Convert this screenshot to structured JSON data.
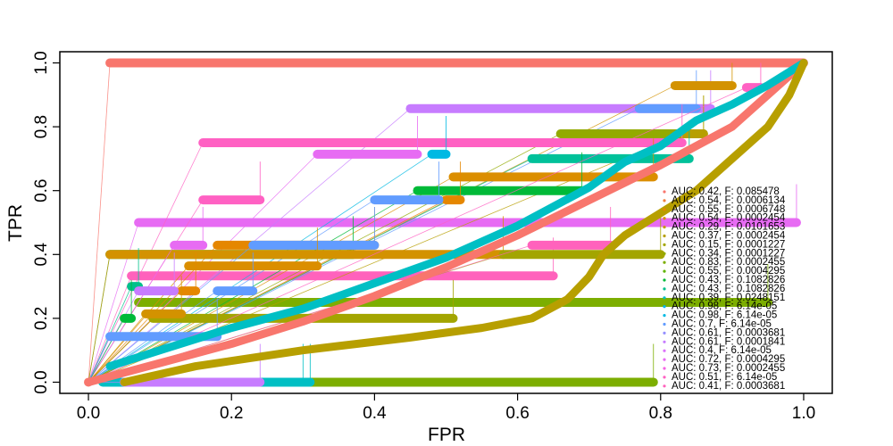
{
  "chart_data": {
    "type": "line",
    "title": "",
    "xlabel": "FPR",
    "ylabel": "TPR",
    "xlim": [
      -0.04,
      1.04
    ],
    "ylim": [
      -0.035,
      1.035
    ],
    "x_ticks": [
      0.0,
      0.2,
      0.4,
      0.6,
      0.8,
      1.0
    ],
    "y_ticks": [
      0.0,
      0.2,
      0.4,
      0.6,
      0.8,
      1.0
    ],
    "x_tick_labels": [
      "0.0",
      "0.2",
      "0.4",
      "0.6",
      "0.8",
      "1.0"
    ],
    "y_tick_labels": [
      "0.0",
      "0.2",
      "0.4",
      "0.6",
      "0.8",
      "1.0"
    ],
    "grid": false,
    "legend_position": "bottom-right",
    "series": [
      {
        "color": "#F8766D",
        "segments": [
          {
            "tpr": 1.0,
            "fpr_start": 0.03,
            "fpr_end": 1.0
          }
        ]
      },
      {
        "color": "#E76BF3",
        "segments": [
          {
            "tpr": 0.5,
            "fpr_start": 0.07,
            "fpr_end": 0.99
          }
        ]
      },
      {
        "color": "#FF62BC",
        "segments": [
          {
            "tpr": 0.333,
            "fpr_start": 0.06,
            "fpr_end": 0.65
          }
        ]
      },
      {
        "color": "#7CAE00",
        "segments": [
          {
            "tpr": 0.25,
            "fpr_start": 0.07,
            "fpr_end": 0.95
          },
          {
            "tpr": 0.0,
            "fpr_start": 0.3,
            "fpr_end": 0.79
          }
        ]
      },
      {
        "color": "#00BFC4",
        "segments": [
          {
            "tpr": 0.0,
            "fpr_start": 0.02,
            "fpr_end": 0.3
          },
          {
            "tpr": 0.0,
            "fpr_start": 0.24,
            "fpr_end": 0.31
          }
        ]
      },
      {
        "color": "#C77CFF",
        "segments": [
          {
            "tpr": 0.857,
            "fpr_start": 0.45,
            "fpr_end": 0.87
          },
          {
            "tpr": 0.0,
            "fpr_start": 0.05,
            "fpr_end": 0.24
          }
        ]
      },
      {
        "color": "#619CFF",
        "segments": [
          {
            "tpr": 0.857,
            "fpr_start": 0.77,
            "fpr_end": 0.85
          }
        ]
      },
      {
        "color": "#D39200",
        "segments": [
          {
            "tpr": 0.929,
            "fpr_start": 0.82,
            "fpr_end": 0.9
          }
        ]
      },
      {
        "color": "#93AA00",
        "segments": [
          {
            "tpr": 0.778,
            "fpr_start": 0.66,
            "fpr_end": 0.86
          }
        ]
      },
      {
        "color": "#B79F00",
        "segments": [
          {
            "tpr": 0.778,
            "fpr_start": 0.83,
            "fpr_end": 0.86
          }
        ]
      },
      {
        "color": "#FF61C3",
        "segments": [
          {
            "tpr": 0.75,
            "fpr_start": 0.16,
            "fpr_end": 0.83
          }
        ]
      },
      {
        "color": "#00C19A",
        "segments": [
          {
            "tpr": 0.7,
            "fpr_start": 0.62,
            "fpr_end": 0.84
          }
        ]
      },
      {
        "color": "#E76BF3",
        "segments": [
          {
            "tpr": 0.714,
            "fpr_start": 0.32,
            "fpr_end": 0.46
          }
        ]
      },
      {
        "color": "#00B9E3",
        "segments": [
          {
            "tpr": 0.714,
            "fpr_start": 0.48,
            "fpr_end": 0.5
          }
        ]
      },
      {
        "color": "#DB8E00",
        "segments": [
          {
            "tpr": 0.643,
            "fpr_start": 0.51,
            "fpr_end": 0.79
          }
        ]
      },
      {
        "color": "#00BA38",
        "segments": [
          {
            "tpr": 0.6,
            "fpr_start": 0.46,
            "fpr_end": 0.69
          }
        ]
      },
      {
        "color": "#E58700",
        "segments": [
          {
            "tpr": 0.571,
            "fpr_start": 0.5,
            "fpr_end": 0.52
          }
        ]
      },
      {
        "color": "#619CFF",
        "segments": [
          {
            "tpr": 0.571,
            "fpr_start": 0.4,
            "fpr_end": 0.49
          }
        ]
      },
      {
        "color": "#FF61C3",
        "segments": [
          {
            "tpr": 0.571,
            "fpr_start": 0.16,
            "fpr_end": 0.24
          }
        ]
      },
      {
        "color": "#00BA38",
        "segments": [
          {
            "tpr": 0.4,
            "fpr_start": 0.03,
            "fpr_end": 0.37
          }
        ]
      },
      {
        "color": "#D39200",
        "segments": [
          {
            "tpr": 0.4,
            "fpr_start": 0.03,
            "fpr_end": 0.58
          }
        ]
      },
      {
        "color": "#A3A500",
        "segments": [
          {
            "tpr": 0.4,
            "fpr_start": 0.58,
            "fpr_end": 0.8
          }
        ]
      },
      {
        "color": "#E58700",
        "segments": [
          {
            "tpr": 0.429,
            "fpr_start": 0.18,
            "fpr_end": 0.4
          }
        ]
      },
      {
        "color": "#619CFF",
        "segments": [
          {
            "tpr": 0.429,
            "fpr_start": 0.23,
            "fpr_end": 0.4
          }
        ]
      },
      {
        "color": "#FF62BC",
        "segments": [
          {
            "tpr": 0.429,
            "fpr_start": 0.62,
            "fpr_end": 0.73
          }
        ]
      },
      {
        "color": "#E76BF3",
        "segments": [
          {
            "tpr": 0.429,
            "fpr_start": 0.12,
            "fpr_end": 0.16
          }
        ]
      },
      {
        "color": "#DB8E00",
        "segments": [
          {
            "tpr": 0.364,
            "fpr_start": 0.14,
            "fpr_end": 0.32
          }
        ]
      },
      {
        "color": "#00C08B",
        "segments": [
          {
            "tpr": 0.3,
            "fpr_start": 0.06,
            "fpr_end": 0.07
          }
        ]
      },
      {
        "color": "#E58700",
        "segments": [
          {
            "tpr": 0.286,
            "fpr_start": 0.13,
            "fpr_end": 0.15
          }
        ]
      },
      {
        "color": "#C77CFF",
        "segments": [
          {
            "tpr": 0.286,
            "fpr_start": 0.07,
            "fpr_end": 0.12
          }
        ]
      },
      {
        "color": "#619CFF",
        "segments": [
          {
            "tpr": 0.286,
            "fpr_start": 0.18,
            "fpr_end": 0.23
          }
        ]
      },
      {
        "color": "#A3A500",
        "segments": [
          {
            "tpr": 0.2,
            "fpr_start": 0.09,
            "fpr_end": 0.51
          }
        ]
      },
      {
        "color": "#D39200",
        "segments": [
          {
            "tpr": 0.214,
            "fpr_start": 0.08,
            "fpr_end": 0.13
          }
        ]
      },
      {
        "color": "#00BA38",
        "segments": [
          {
            "tpr": 0.2,
            "fpr_start": 0.05,
            "fpr_end": 0.06
          }
        ]
      },
      {
        "color": "#619CFF",
        "segments": [
          {
            "tpr": 0.143,
            "fpr_start": 0.03,
            "fpr_end": 0.18
          }
        ]
      },
      {
        "color": "#FF61C3",
        "segments": [
          {
            "tpr": 0.923,
            "fpr_start": 0.92,
            "fpr_end": 0.94
          }
        ]
      },
      {
        "color": "#F8766D",
        "curve": [
          [
            0.0,
            0.0
          ],
          [
            0.1,
            0.06
          ],
          [
            0.2,
            0.12
          ],
          [
            0.3,
            0.19
          ],
          [
            0.4,
            0.27
          ],
          [
            0.5,
            0.36
          ],
          [
            0.6,
            0.46
          ],
          [
            0.7,
            0.57
          ],
          [
            0.8,
            0.68
          ],
          [
            0.9,
            0.8
          ],
          [
            1.0,
            1.0
          ]
        ]
      },
      {
        "color": "#00BFC4",
        "curve": [
          [
            0.03,
            0.05
          ],
          [
            0.1,
            0.1
          ],
          [
            0.2,
            0.17
          ],
          [
            0.3,
            0.23
          ],
          [
            0.4,
            0.31
          ],
          [
            0.5,
            0.39
          ],
          [
            0.6,
            0.49
          ],
          [
            0.7,
            0.61
          ],
          [
            0.75,
            0.69
          ],
          [
            0.8,
            0.74
          ],
          [
            0.85,
            0.82
          ],
          [
            0.9,
            0.87
          ],
          [
            0.95,
            0.93
          ],
          [
            1.0,
            1.0
          ]
        ]
      },
      {
        "color": "#B79F00",
        "curve": [
          [
            0.05,
            0.0
          ],
          [
            0.15,
            0.05
          ],
          [
            0.3,
            0.1
          ],
          [
            0.45,
            0.14
          ],
          [
            0.55,
            0.17
          ],
          [
            0.62,
            0.2
          ],
          [
            0.67,
            0.26
          ],
          [
            0.7,
            0.33
          ],
          [
            0.72,
            0.4
          ],
          [
            0.75,
            0.46
          ],
          [
            0.8,
            0.53
          ],
          [
            0.85,
            0.6
          ],
          [
            0.9,
            0.7
          ],
          [
            0.95,
            0.8
          ],
          [
            0.98,
            0.9
          ],
          [
            1.0,
            1.0
          ]
        ]
      }
    ],
    "legend": [
      {
        "label": "AUC: 0.42, F: 0.085478",
        "color": "#F8766D"
      },
      {
        "label": "AUC: 0.54, F: 0.0006134",
        "color": "#EE7F3C"
      },
      {
        "label": "AUC: 0.55, F: 0.0006748",
        "color": "#E58700"
      },
      {
        "label": "AUC: 0.54, F: 0.0002454",
        "color": "#D39200"
      },
      {
        "label": "AUC: 0.29, F: 0.0101653",
        "color": "#C49A00"
      },
      {
        "label": "AUC: 0.37, F: 0.0002454",
        "color": "#B79F00"
      },
      {
        "label": "AUC: 0.15, F: 0.0001227",
        "color": "#A3A500"
      },
      {
        "label": "AUC: 0.34, F: 0.0001227",
        "color": "#93AA00"
      },
      {
        "label": "AUC: 0.83, F: 0.0002455",
        "color": "#7CAE00"
      },
      {
        "label": "AUC: 0.55, F: 0.0004295",
        "color": "#5EB300"
      },
      {
        "label": "AUC: 0.43, F: 0.1082826",
        "color": "#00BA38"
      },
      {
        "label": "AUC: 0.43, F: 0.1082826",
        "color": "#00C08B"
      },
      {
        "label": "AUC: 0.39, F: 0.0248151",
        "color": "#00BFC4"
      },
      {
        "label": "AUC: 0.98, F: 6.14e-05",
        "color": "#00B4F0"
      },
      {
        "label": "AUC: 0.98, F: 6.14e-05",
        "color": "#00B9E3"
      },
      {
        "label": "AUC: 0.7, F: 6.14e-05",
        "color": "#619CFF"
      },
      {
        "label": "AUC: 0.61, F: 0.0003681",
        "color": "#9590FF"
      },
      {
        "label": "AUC: 0.61, F: 0.0001841",
        "color": "#C77CFF"
      },
      {
        "label": "AUC: 0.4, F: 6.14e-05",
        "color": "#DB72FB"
      },
      {
        "label": "AUC: 0.72, F: 0.0004295",
        "color": "#E76BF3"
      },
      {
        "label": "AUC: 0.73, F: 0.0002455",
        "color": "#F564E3"
      },
      {
        "label": "AUC: 0.51, F: 6.14e-05",
        "color": "#FF61C3"
      },
      {
        "label": "AUC: 0.41, F: 0.0003681",
        "color": "#FF62BC"
      }
    ]
  }
}
